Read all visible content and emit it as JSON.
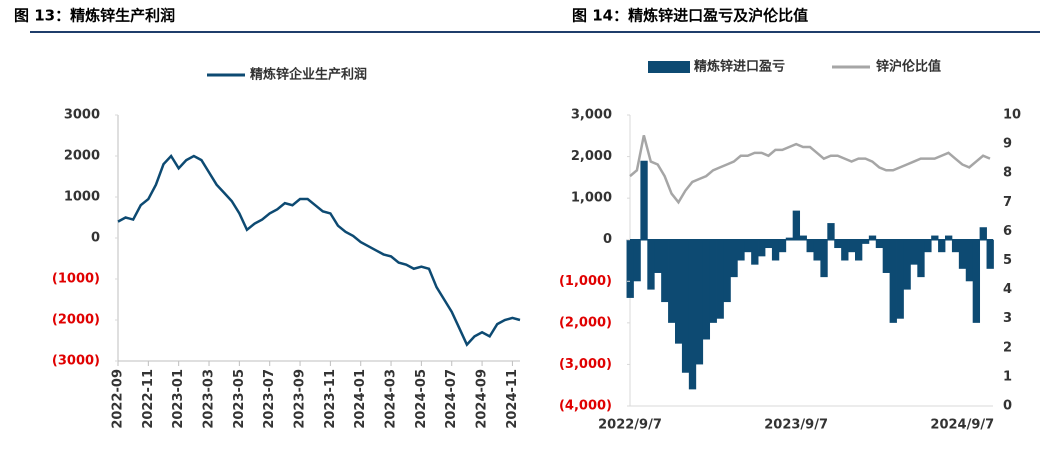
{
  "chart_data": [
    {
      "type": "line",
      "title": "图 13：精炼锌生产利润",
      "categories": [
        "2022-09",
        null,
        null,
        null,
        "2022-11",
        null,
        null,
        null,
        "2023-01",
        null,
        null,
        null,
        "2023-03",
        null,
        null,
        null,
        "2023-05",
        null,
        null,
        null,
        "2023-07",
        null,
        null,
        null,
        "2023-09",
        null,
        null,
        null,
        "2023-11",
        null,
        null,
        null,
        "2024-01",
        null,
        null,
        null,
        "2024-03",
        null,
        null,
        null,
        "2024-05",
        null,
        null,
        null,
        "2024-07",
        null,
        null,
        null,
        "2024-09",
        null,
        null,
        null,
        "2024-11",
        null
      ],
      "series": [
        {
          "name": "精炼锌企业生产利润",
          "color": "#0d4a72",
          "values": [
            400,
            500,
            450,
            800,
            950,
            1300,
            1800,
            2000,
            1700,
            1900,
            2000,
            1900,
            1600,
            1300,
            1100,
            900,
            600,
            200,
            350,
            450,
            600,
            700,
            850,
            800,
            950,
            950,
            800,
            650,
            600,
            300,
            150,
            50,
            -100,
            -200,
            -300,
            -400,
            -450,
            -600,
            -650,
            -750,
            -700,
            -750,
            -1200,
            -1500,
            -1800,
            -2200,
            -2600,
            -2400,
            -2300,
            -2400,
            -2100,
            -2000,
            -1950,
            -2000
          ]
        }
      ],
      "ylim": [
        -3000,
        3000
      ],
      "yticks": [
        3000,
        2000,
        1000,
        0,
        {
          "value": -1000,
          "label": "(1000)"
        },
        {
          "value": -2000,
          "label": "(2000)"
        },
        {
          "value": -3000,
          "label": "(3000)"
        }
      ],
      "negative_tick_color": "#e00000",
      "grid": false
    },
    {
      "type": "bar+line",
      "title": "图 14：精炼锌进口盈亏及沪伦比值",
      "categories": [
        "2022/9/7",
        null,
        null,
        null,
        null,
        null,
        null,
        null,
        null,
        null,
        null,
        null,
        null,
        null,
        null,
        null,
        null,
        null,
        null,
        null,
        null,
        null,
        null,
        null,
        "2023/9/7",
        null,
        null,
        null,
        null,
        null,
        null,
        null,
        null,
        null,
        null,
        null,
        null,
        null,
        null,
        null,
        null,
        null,
        null,
        null,
        null,
        null,
        null,
        null,
        "2024/9/7",
        null,
        null,
        null,
        null
      ],
      "series": [
        {
          "name": "精炼锌进口盈亏",
          "color": "#0d4a72",
          "kind": "bar",
          "values": [
            -1400,
            -1000,
            1900,
            -1200,
            -800,
            -1500,
            -2000,
            -2500,
            -3200,
            -3600,
            -3000,
            -2400,
            -2000,
            -1900,
            -1500,
            -900,
            -500,
            -300,
            -600,
            -400,
            -200,
            -500,
            -300,
            50,
            700,
            100,
            -300,
            -500,
            -900,
            400,
            -200,
            -500,
            -300,
            -500,
            -100,
            100,
            -200,
            -800,
            -2000,
            -1900,
            -1200,
            -600,
            -900,
            -300,
            100,
            -300,
            100,
            -300,
            -700,
            -1000,
            -2000,
            300,
            -700
          ]
        },
        {
          "name": "锌沪伦比值",
          "color": "#a6a6a6",
          "kind": "line",
          "axis": "y2",
          "values": [
            7.9,
            8.1,
            9.3,
            8.4,
            8.3,
            7.9,
            7.3,
            7.0,
            7.4,
            7.7,
            7.8,
            7.9,
            8.1,
            8.2,
            8.3,
            8.4,
            8.6,
            8.6,
            8.7,
            8.7,
            8.6,
            8.8,
            8.8,
            8.9,
            9.0,
            8.9,
            8.9,
            8.7,
            8.5,
            8.6,
            8.6,
            8.5,
            8.4,
            8.5,
            8.5,
            8.4,
            8.2,
            8.1,
            8.1,
            8.2,
            8.3,
            8.4,
            8.5,
            8.5,
            8.5,
            8.6,
            8.7,
            8.5,
            8.3,
            8.2,
            8.4,
            8.6,
            8.5
          ]
        }
      ],
      "ylim": [
        -4000,
        3000
      ],
      "yticks": [
        {
          "value": 3000,
          "label": "3,000"
        },
        {
          "value": 2000,
          "label": "2,000"
        },
        {
          "value": 1000,
          "label": "1,000"
        },
        0,
        {
          "value": -1000,
          "label": "(1,000)"
        },
        {
          "value": -2000,
          "label": "(2,000)"
        },
        {
          "value": -3000,
          "label": "(3,000)"
        },
        {
          "value": -4000,
          "label": "(4,000)"
        }
      ],
      "y2lim": [
        0,
        10
      ],
      "y2ticks": [
        0,
        1,
        2,
        3,
        4,
        5,
        6,
        7,
        8,
        9,
        10
      ],
      "negative_tick_color": "#e00000",
      "grid": false
    }
  ]
}
